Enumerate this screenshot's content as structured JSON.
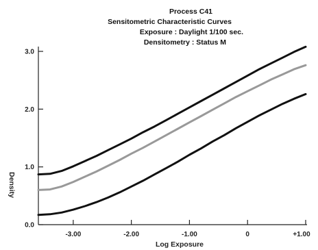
{
  "chart_data": {
    "type": "line",
    "title_lines": [
      "Process C41",
      "Sensitometric Characteristic Curves",
      "Exposure : Daylight 1/100 sec.",
      "Densitometry : Status M"
    ],
    "xlabel": "Log Exposure",
    "ylabel": "Density",
    "xlim": [
      -3.6,
      1.0
    ],
    "ylim": [
      0.0,
      3.0
    ],
    "x_ticks": [
      -3.0,
      -2.0,
      -1.0,
      0.0,
      1.0
    ],
    "x_tick_labels": [
      "-3.00",
      "-2.00",
      "-1.00",
      "0",
      "+1.00"
    ],
    "y_ticks": [
      0.0,
      1.0,
      2.0,
      3.0
    ],
    "y_tick_labels": [
      "0.0",
      "1.0",
      "2.0",
      "3.0"
    ],
    "grid": false,
    "series": [
      {
        "color": "#111111",
        "x": [
          -3.6,
          -3.4,
          -3.2,
          -3.0,
          -2.8,
          -2.6,
          -2.4,
          -2.2,
          -2.0,
          -1.8,
          -1.6,
          -1.4,
          -1.2,
          -1.0,
          -0.8,
          -0.6,
          -0.4,
          -0.2,
          0.0,
          0.2,
          0.4,
          0.6,
          0.8,
          1.0
        ],
        "values": [
          0.87,
          0.88,
          0.93,
          1.01,
          1.1,
          1.19,
          1.29,
          1.39,
          1.49,
          1.6,
          1.7,
          1.81,
          1.92,
          2.03,
          2.14,
          2.25,
          2.36,
          2.47,
          2.58,
          2.69,
          2.79,
          2.89,
          2.99,
          3.08
        ]
      },
      {
        "color": "#999999",
        "x": [
          -3.6,
          -3.4,
          -3.2,
          -3.0,
          -2.8,
          -2.6,
          -2.4,
          -2.2,
          -2.0,
          -1.8,
          -1.6,
          -1.4,
          -1.2,
          -1.0,
          -0.8,
          -0.6,
          -0.4,
          -0.2,
          0.0,
          0.2,
          0.4,
          0.6,
          0.8,
          1.0
        ],
        "values": [
          0.6,
          0.61,
          0.66,
          0.74,
          0.83,
          0.92,
          1.02,
          1.12,
          1.23,
          1.33,
          1.44,
          1.55,
          1.66,
          1.77,
          1.88,
          1.99,
          2.1,
          2.21,
          2.31,
          2.41,
          2.51,
          2.6,
          2.69,
          2.76
        ]
      },
      {
        "color": "#111111",
        "x": [
          -3.6,
          -3.4,
          -3.2,
          -3.0,
          -2.8,
          -2.6,
          -2.4,
          -2.2,
          -2.0,
          -1.8,
          -1.6,
          -1.4,
          -1.2,
          -1.0,
          -0.8,
          -0.6,
          -0.4,
          -0.2,
          0.0,
          0.2,
          0.4,
          0.6,
          0.8,
          1.0
        ],
        "values": [
          0.17,
          0.18,
          0.21,
          0.26,
          0.32,
          0.39,
          0.47,
          0.56,
          0.66,
          0.76,
          0.87,
          0.98,
          1.09,
          1.21,
          1.32,
          1.44,
          1.55,
          1.67,
          1.78,
          1.89,
          1.99,
          2.09,
          2.18,
          2.26
        ]
      }
    ]
  }
}
